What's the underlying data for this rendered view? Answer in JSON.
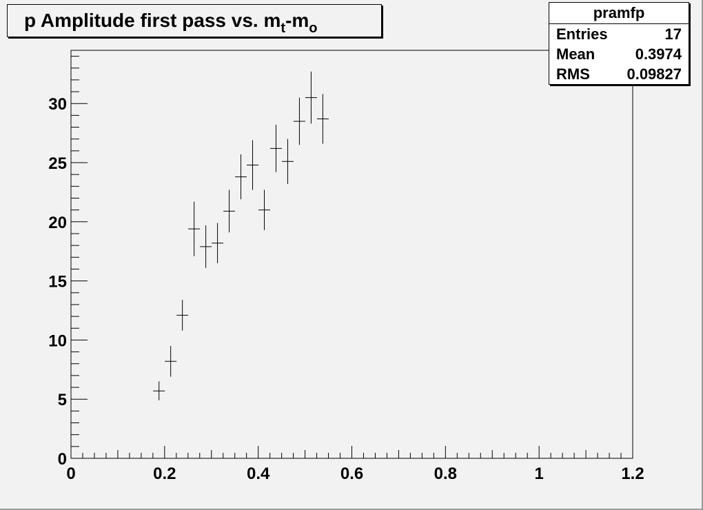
{
  "title": {
    "main": "p Amplitude first pass vs. m",
    "sub1": "t",
    "dash": "-m",
    "sub2": "o"
  },
  "stats": {
    "name": "pramfp",
    "rows": [
      {
        "label": "Entries",
        "value": "17"
      },
      {
        "label": "Mean",
        "value": "0.3974"
      },
      {
        "label": "RMS",
        "value": "0.09827"
      }
    ]
  },
  "chart_data": {
    "type": "scatter",
    "title": "p Amplitude first pass vs. m_t-m_o",
    "xlim": [
      0,
      1.2
    ],
    "ylim": [
      0,
      34.5
    ],
    "xticks": [
      "0",
      "0.2",
      "0.4",
      "0.6",
      "0.8",
      "1",
      "1.2"
    ],
    "yticks": [
      "0",
      "5",
      "10",
      "15",
      "20",
      "25",
      "30"
    ],
    "points": [
      {
        "x": 0.188,
        "y": 5.7,
        "err": 0.8
      },
      {
        "x": 0.213,
        "y": 8.2,
        "err": 1.3
      },
      {
        "x": 0.238,
        "y": 12.1,
        "err": 1.3
      },
      {
        "x": 0.263,
        "y": 19.4,
        "err": 2.3
      },
      {
        "x": 0.288,
        "y": 17.9,
        "err": 1.8
      },
      {
        "x": 0.313,
        "y": 18.2,
        "err": 1.7
      },
      {
        "x": 0.338,
        "y": 20.9,
        "err": 1.8
      },
      {
        "x": 0.363,
        "y": 23.8,
        "err": 1.9
      },
      {
        "x": 0.388,
        "y": 24.8,
        "err": 2.1
      },
      {
        "x": 0.413,
        "y": 21.0,
        "err": 1.7
      },
      {
        "x": 0.438,
        "y": 26.2,
        "err": 2.0
      },
      {
        "x": 0.463,
        "y": 25.1,
        "err": 1.9
      },
      {
        "x": 0.488,
        "y": 28.5,
        "err": 2.0
      },
      {
        "x": 0.513,
        "y": 30.5,
        "err": 2.2
      },
      {
        "x": 0.538,
        "y": 28.7,
        "err": 2.1
      }
    ],
    "xbin_halfwidth": 0.0125,
    "colors": {
      "background": "#f2f2f2",
      "frame": "#000000",
      "marker": "#000000"
    }
  }
}
